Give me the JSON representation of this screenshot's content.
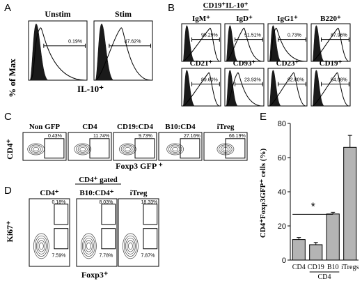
{
  "colors": {
    "filled_histogram": "#1a1a1a",
    "bar_fill": "#b4b4b4",
    "axis": "#000000",
    "contour": "#444444"
  },
  "panel_a": {
    "letter": "A",
    "ylabel": "% of Max",
    "xlabel": "IL-10⁺",
    "plots": [
      {
        "title": "Unstim",
        "percent": "0.19%"
      },
      {
        "title": "Stim",
        "percent": "47.62%"
      }
    ]
  },
  "panel_b": {
    "letter": "B",
    "header": "CD19⁺IL-10⁺",
    "plots": [
      {
        "title": "IgM⁺",
        "percent": "95.29%"
      },
      {
        "title": "IgD⁺",
        "percent": "51.51%"
      },
      {
        "title": "IgG1⁺",
        "percent": "0.73%"
      },
      {
        "title": "B220⁺",
        "percent": "87.96%"
      },
      {
        "title": "CD21⁺",
        "percent": "89.60%"
      },
      {
        "title": "CD93⁺",
        "percent": "23.93%"
      },
      {
        "title": "CD23⁺",
        "percent": "82.00%"
      },
      {
        "title": "CD19⁺",
        "percent": "84.08%"
      }
    ]
  },
  "panel_c": {
    "letter": "C",
    "ylabel": "CD4⁺",
    "xlabel": "Foxp3 GFP ⁺",
    "plots": [
      {
        "title": "Non GFP",
        "percent": "0.43%"
      },
      {
        "title": "CD4",
        "percent": "11.74%"
      },
      {
        "title": "CD19:CD4",
        "percent": "9.73%"
      },
      {
        "title": "B10:CD4",
        "percent": "27.16%"
      },
      {
        "title": "iTreg",
        "percent": "66.19%"
      }
    ]
  },
  "panel_d": {
    "letter": "D",
    "header": "CD4⁺ gated",
    "ylabel": "Ki67⁺",
    "xlabel": "Foxp3⁺",
    "plots": [
      {
        "title": "CD4⁺",
        "upper": "0.18%",
        "lower": "7.59%"
      },
      {
        "title": "B10:CD4⁺",
        "upper": "8.03%",
        "lower": "7.78%"
      },
      {
        "title": "iTreg",
        "upper": "18.33%",
        "lower": "7.87%"
      }
    ]
  },
  "chart_data": {
    "type": "bar",
    "letter": "E",
    "categories": [
      "CD4",
      "CD19",
      "B10",
      "iTregs"
    ],
    "group_label": "CD4",
    "values": [
      12,
      9,
      27,
      66
    ],
    "errors": [
      1.2,
      1.3,
      1.0,
      7
    ],
    "ylabel": "CD4⁺Foxp3GFP⁺ cells (%)",
    "ylim": [
      0,
      80
    ],
    "yticks": [
      0,
      20,
      40,
      60,
      80
    ],
    "significance": "*"
  }
}
